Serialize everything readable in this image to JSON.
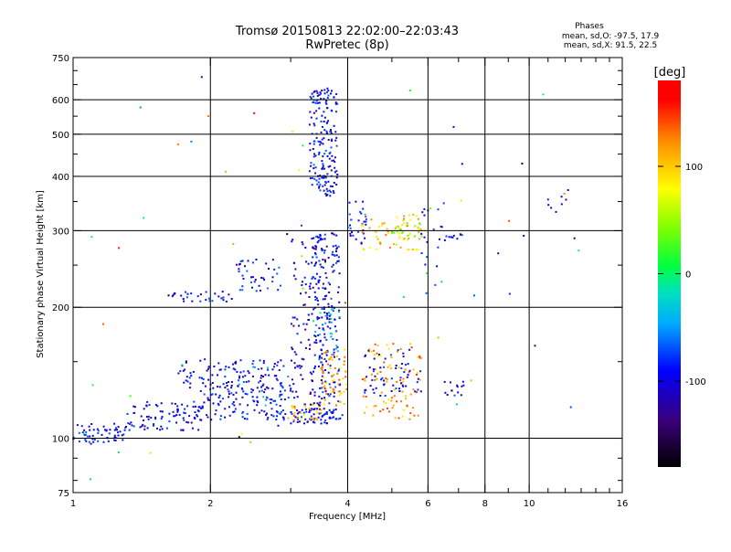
{
  "header": {
    "title": "Tromsø 20150813 22:02:00–22:03:43",
    "subtitle": "RwPretec (8p)"
  },
  "phases_box": {
    "title": "Phases",
    "line_o": "mean, sd,O: -97.5, 17.9",
    "line_x": "mean, sd,X:  91.5, 22.5"
  },
  "colorbar": {
    "label": "[deg]",
    "ticks": [
      {
        "value": 100,
        "label": "100"
      },
      {
        "value": 0,
        "label": "0"
      },
      {
        "value": -100,
        "label": "-100"
      }
    ],
    "range": [
      -180,
      180
    ],
    "colors": [
      "#000000",
      "#2a0060",
      "#0000ff",
      "#00c8ff",
      "#00e060",
      "#00ff00",
      "#c8ff00",
      "#ffff00",
      "#ffa000",
      "#ff0000"
    ]
  },
  "chart_data": {
    "type": "scatter",
    "xlabel": "Frequency [MHz]",
    "ylabel": "Stationary phase Virtual Height [km]",
    "xscale": "log",
    "yscale": "log",
    "xlim": [
      1,
      16
    ],
    "ylim": [
      75,
      750
    ],
    "x_ticks": [
      {
        "value": 1,
        "label": "1"
      },
      {
        "value": 2,
        "label": "2"
      },
      {
        "value": 4,
        "label": "4"
      },
      {
        "value": 6,
        "label": "6"
      },
      {
        "value": 8,
        "label": "8"
      },
      {
        "value": 10,
        "label": "10"
      },
      {
        "value": 16,
        "label": "16"
      }
    ],
    "x_minor": [
      3,
      5,
      7,
      9,
      11,
      12,
      13,
      14,
      15
    ],
    "y_ticks": [
      {
        "value": 75,
        "label": "75"
      },
      {
        "value": 100,
        "label": "100"
      },
      {
        "value": 200,
        "label": "200"
      },
      {
        "value": 300,
        "label": "300"
      },
      {
        "value": 400,
        "label": "400"
      },
      {
        "value": 500,
        "label": "500"
      },
      {
        "value": 600,
        "label": "600"
      },
      {
        "value": 750,
        "label": "750"
      }
    ],
    "y_minor": [
      80,
      90,
      150,
      250,
      350,
      450,
      550,
      650,
      700
    ],
    "grid_x": [
      2,
      4,
      6,
      8,
      10
    ],
    "grid_y": [
      100,
      200,
      300,
      400,
      500,
      600
    ],
    "color_scale": "phase [deg]",
    "clusters": [
      {
        "x": [
          1.0,
          1.3
        ],
        "y": [
          97,
          108
        ],
        "phase": -100,
        "n": 60
      },
      {
        "x": [
          1.3,
          1.9
        ],
        "y": [
          104,
          122
        ],
        "phase": -105,
        "n": 90
      },
      {
        "x": [
          1.9,
          3.0
        ],
        "y": [
          110,
          135
        ],
        "phase": -100,
        "n": 130
      },
      {
        "x": [
          1.7,
          2.9
        ],
        "y": [
          130,
          152
        ],
        "phase": -105,
        "n": 90
      },
      {
        "x": [
          2.3,
          3.0
        ],
        "y": [
          110,
          150
        ],
        "phase": -60,
        "n": 18
      },
      {
        "x": [
          1.65,
          2.25
        ],
        "y": [
          206,
          218
        ],
        "phase": -100,
        "n": 30
      },
      {
        "x": [
          2.25,
          2.85
        ],
        "y": [
          218,
          258
        ],
        "phase": -95,
        "n": 40
      },
      {
        "x": [
          3.0,
          3.9
        ],
        "y": [
          108,
          117
        ],
        "phase": -100,
        "n": 70
      },
      {
        "x": [
          3.0,
          3.5
        ],
        "y": [
          110,
          120
        ],
        "phase": 110,
        "n": 30
      },
      {
        "x": [
          3.0,
          3.65
        ],
        "y": [
          115,
          290
        ],
        "phase": -115,
        "n": 150
      },
      {
        "x": [
          3.35,
          3.85
        ],
        "y": [
          120,
          300
        ],
        "phase": -100,
        "n": 150
      },
      {
        "x": [
          3.35,
          3.85
        ],
        "y": [
          155,
          200
        ],
        "phase": -40,
        "n": 25
      },
      {
        "x": [
          3.3,
          3.8
        ],
        "y": [
          360,
          640
        ],
        "phase": -100,
        "n": 180
      },
      {
        "x": [
          3.5,
          4.0
        ],
        "y": [
          118,
          160
        ],
        "phase": 110,
        "n": 60
      },
      {
        "x": [
          4.0,
          4.4
        ],
        "y": [
          280,
          350
        ],
        "phase": -100,
        "n": 30
      },
      {
        "x": [
          4.3,
          5.8
        ],
        "y": [
          110,
          165
        ],
        "phase": 115,
        "n": 90
      },
      {
        "x": [
          4.3,
          5.8
        ],
        "y": [
          125,
          160
        ],
        "phase": -100,
        "n": 60
      },
      {
        "x": [
          4.3,
          5.8
        ],
        "y": [
          270,
          330
        ],
        "phase": 100,
        "n": 60
      },
      {
        "x": [
          5.0,
          5.9
        ],
        "y": [
          290,
          320
        ],
        "phase": 55,
        "n": 25
      },
      {
        "x": [
          5.8,
          6.5
        ],
        "y": [
          200,
          360
        ],
        "phase": -100,
        "n": 20
      },
      {
        "x": [
          6.5,
          7.2
        ],
        "y": [
          125,
          135
        ],
        "phase": -100,
        "n": 14
      },
      {
        "x": [
          6.5,
          7.4
        ],
        "y": [
          285,
          295
        ],
        "phase": -100,
        "n": 10
      },
      {
        "x": [
          11.0,
          12.5
        ],
        "y": [
          330,
          380
        ],
        "phase": -110,
        "n": 8
      },
      {
        "x": [
          1.0,
          14.0
        ],
        "y": [
          80,
          700
        ],
        "phase": 0,
        "n": 60
      }
    ]
  }
}
